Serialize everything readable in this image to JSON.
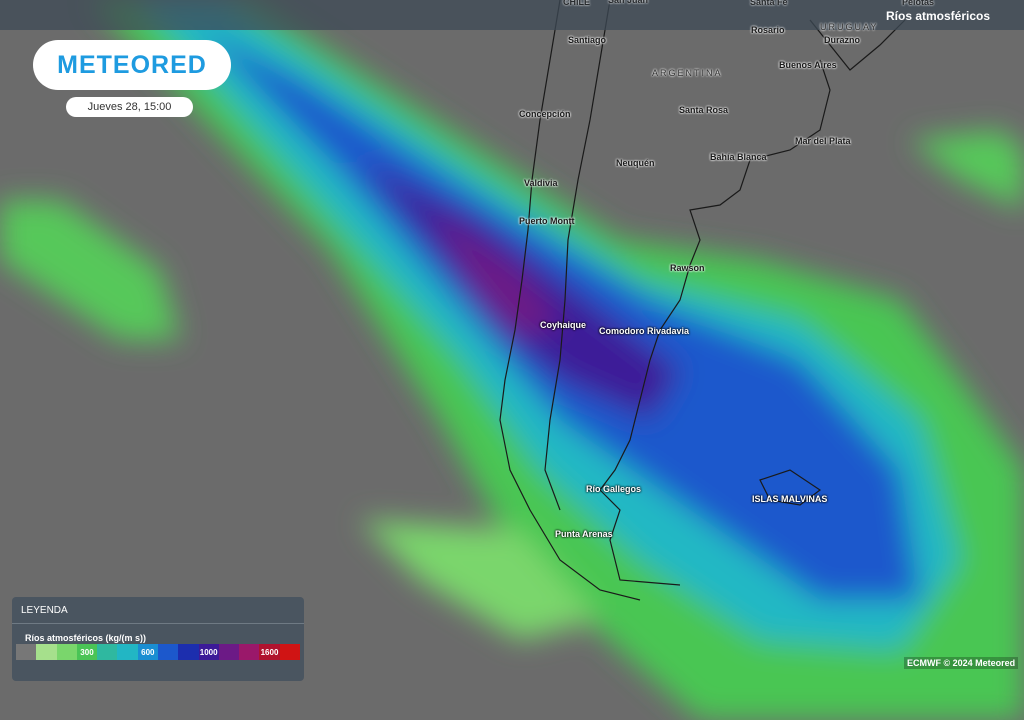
{
  "logo": "METEORED",
  "date": "Jueves 28, 15:00",
  "header": {
    "title": "Ríos atmosféricos",
    "edge_labels": [
      "CHILE",
      "San Juan",
      "Santa Fe",
      "Pelotas"
    ]
  },
  "places": [
    {
      "name": "Santiago"
    },
    {
      "name": "Concepción"
    },
    {
      "name": "Valdivia"
    },
    {
      "name": "Puerto Montt"
    },
    {
      "name": "Coyhaique"
    },
    {
      "name": "Comodoro Rivadavia"
    },
    {
      "name": "Río Gallegos"
    },
    {
      "name": "Punta Arenas"
    },
    {
      "name": "Neuquén"
    },
    {
      "name": "Santa Rosa"
    },
    {
      "name": "Bahía Blanca"
    },
    {
      "name": "Rawson"
    },
    {
      "name": "Mar del Plata"
    },
    {
      "name": "Buenos Aires"
    },
    {
      "name": "Rosario"
    },
    {
      "name": "Durazno"
    },
    {
      "name": "ARGENTINA"
    },
    {
      "name": "URUGUAY"
    },
    {
      "name": "ISLAS MALVINAS"
    }
  ],
  "legend": {
    "title": "LEYENDA",
    "subtitle": "Ríos atmosféricos (kg/(m s))",
    "colors": [
      "#777777",
      "#a6e08c",
      "#7ad66c",
      "#4ac456",
      "#2fb8a0",
      "#22b6c4",
      "#1a8ed2",
      "#1c58cc",
      "#1c2eae",
      "#3c1a98",
      "#6c1a86",
      "#9a186a",
      "#b0122e",
      "#d01414"
    ],
    "tick_labels": [
      {
        "label": "300",
        "swatch": 3
      },
      {
        "label": "600",
        "swatch": 6
      },
      {
        "label": "1000",
        "swatch": 9
      },
      {
        "label": "1600",
        "swatch": 12
      }
    ]
  },
  "credit": "ECMWF © 2024 Meteored"
}
